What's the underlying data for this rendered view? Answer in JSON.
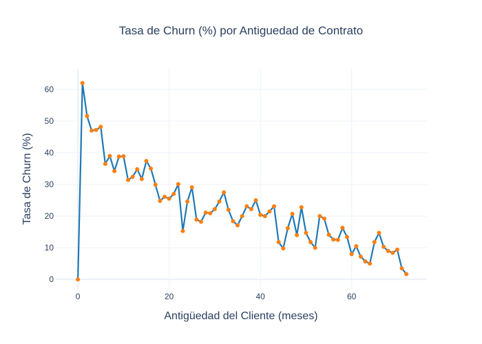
{
  "chart_data": {
    "type": "line",
    "title": "Tasa de Churn (%) por Antiguedad de Contrato",
    "xlabel": "Antigüedad del Cliente (meses)",
    "ylabel": "Tasa de Churn (%)",
    "xlim": [
      -5,
      76.5
    ],
    "ylim": [
      -3,
      66.5
    ],
    "xticks": [
      0,
      20,
      40,
      60
    ],
    "yticks": [
      0,
      10,
      20,
      30,
      40,
      50,
      60
    ],
    "grid": true,
    "line_color": "#1f77b4",
    "marker_color": "#ff7f0e",
    "x": [
      0,
      1,
      2,
      3,
      4,
      5,
      6,
      7,
      8,
      9,
      10,
      11,
      12,
      13,
      14,
      15,
      16,
      17,
      18,
      19,
      20,
      21,
      22,
      23,
      24,
      25,
      26,
      27,
      28,
      29,
      30,
      31,
      32,
      33,
      34,
      35,
      36,
      37,
      38,
      39,
      40,
      41,
      42,
      43,
      44,
      45,
      46,
      47,
      48,
      49,
      50,
      51,
      52,
      53,
      54,
      55,
      56,
      57,
      58,
      59,
      60,
      61,
      62,
      63,
      64,
      65,
      66,
      67,
      68,
      69,
      70,
      71,
      72
    ],
    "y": [
      0,
      62,
      51.6,
      47,
      47.2,
      48.2,
      36.5,
      39,
      34.2,
      38.8,
      38.9,
      31.4,
      32.4,
      34.8,
      31.7,
      37.4,
      35,
      29.9,
      24.8,
      26.1,
      25.5,
      27,
      30.1,
      15.3,
      24.6,
      29.1,
      18.9,
      18.2,
      21.1,
      20.9,
      22.2,
      24.6,
      27.5,
      22,
      18.4,
      17.1,
      20,
      23.1,
      22.2,
      25,
      20.4,
      20,
      21.5,
      23.1,
      11.8,
      9.8,
      16.2,
      20.7,
      14,
      22.8,
      14.7,
      11.8,
      10,
      20,
      19.2,
      14.1,
      12.6,
      12.5,
      16.3,
      13.4,
      8,
      10.5,
      7.2,
      5.7,
      5,
      11.8,
      14.7,
      10.3,
      9,
      8.4,
      9.4,
      3.5,
      1.7
    ]
  }
}
